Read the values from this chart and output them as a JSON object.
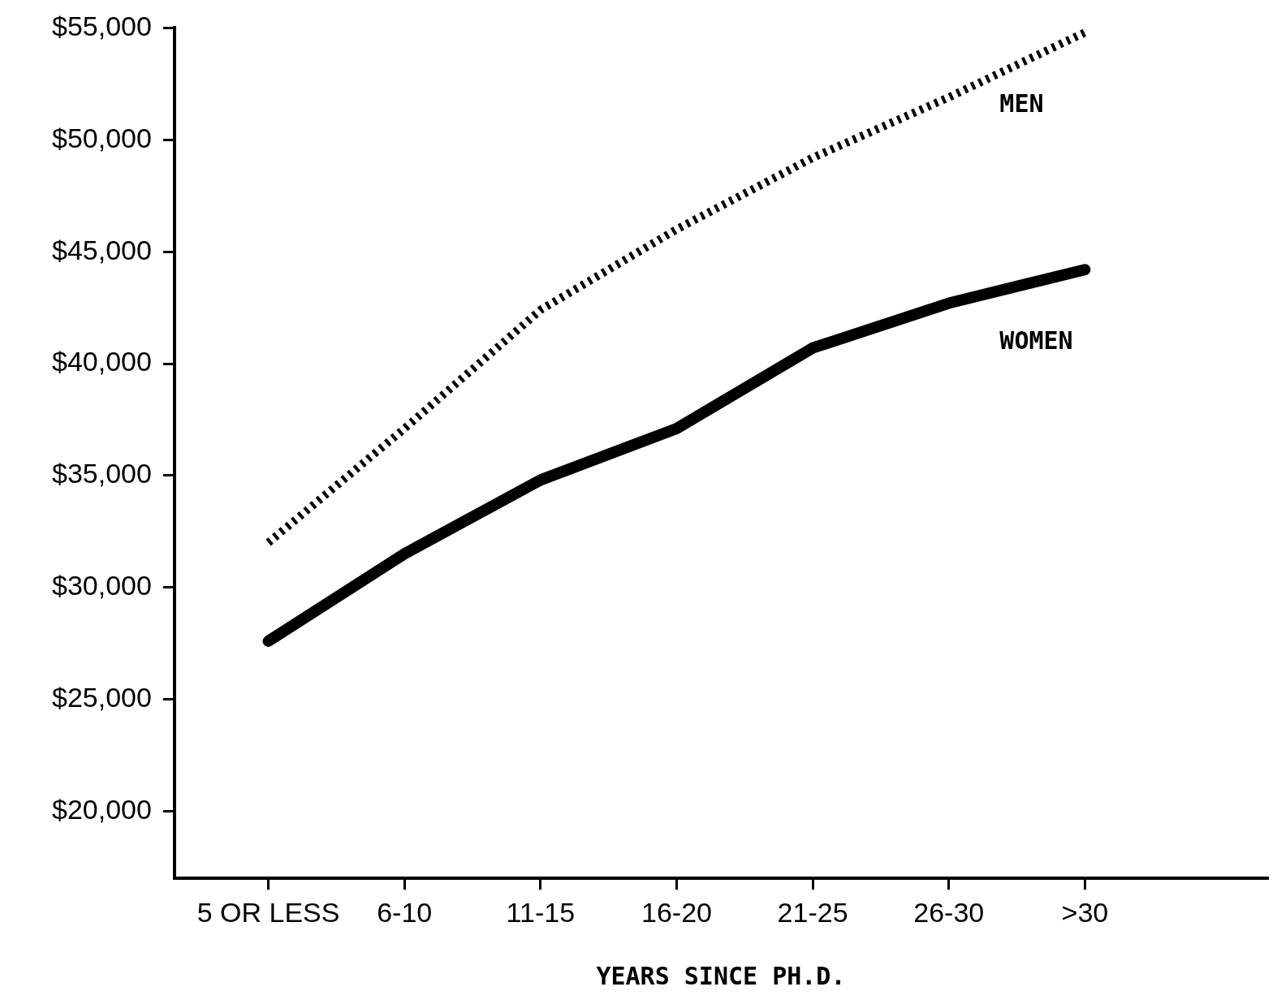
{
  "chart_data": {
    "type": "line",
    "xlabel": "YEARS SINCE PH.D.",
    "categories": [
      "5 OR LESS",
      "6-10",
      "11-15",
      "16-20",
      "21-25",
      "26-30",
      ">30"
    ],
    "series": [
      {
        "name": "MEN",
        "color": "#000000",
        "line_style": "dotted",
        "values": [
          32000,
          37100,
          42400,
          46000,
          49200,
          51900,
          54800
        ]
      },
      {
        "name": "WOMEN",
        "color": "#000000",
        "line_style": "solid",
        "values": [
          27600,
          31500,
          34800,
          37100,
          40700,
          42700,
          44200
        ]
      }
    ],
    "ylim": [
      17000,
      55000
    ],
    "yticks": [
      {
        "value": 20000,
        "label": "$20,000"
      },
      {
        "value": 25000,
        "label": "$25,000"
      },
      {
        "value": 30000,
        "label": "$30,000"
      },
      {
        "value": 35000,
        "label": "$35,000"
      },
      {
        "value": 40000,
        "label": "$40,000"
      },
      {
        "value": 45000,
        "label": "$45,000"
      },
      {
        "value": 50000,
        "label": "$50,000"
      },
      {
        "value": 55000,
        "label": "$55,000"
      }
    ],
    "grid": false,
    "legend": false,
    "marker": "none"
  }
}
